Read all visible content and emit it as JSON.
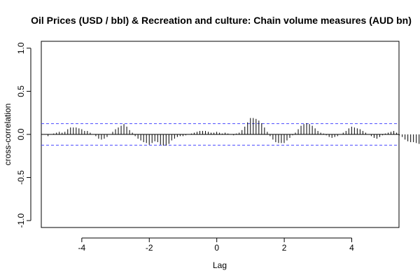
{
  "chart_data": {
    "type": "bar",
    "title": "Oil Prices (USD / bbl) & Recreation and culture: Chain volume measures (AUD bn)",
    "xlabel": "Lag",
    "ylabel": "cross-correlation",
    "xlim": [
      -5.2,
      5.4
    ],
    "ylim": [
      -1.08,
      1.08
    ],
    "x_ticks": [
      -4,
      -2,
      0,
      2,
      4
    ],
    "x_tick_labels": [
      "-4",
      "-2",
      "0",
      "2",
      "4"
    ],
    "y_ticks": [
      -1.0,
      -0.5,
      0.0,
      0.5,
      1.0
    ],
    "y_tick_labels": [
      "-1.0",
      "-0.5",
      "0.0",
      "0.5",
      "1.0"
    ],
    "confidence_bound": 0.125,
    "confidence_color": "#4a4aff",
    "grid": false,
    "legend": "none",
    "lag_start": -5.0,
    "lag_step": 0.0833,
    "values": [
      -0.02,
      0.0,
      0.01,
      0.02,
      0.03,
      0.02,
      0.03,
      0.06,
      0.08,
      0.08,
      0.08,
      0.07,
      0.06,
      0.04,
      0.04,
      0.02,
      0.0,
      -0.02,
      -0.05,
      -0.06,
      -0.05,
      -0.03,
      0.0,
      0.03,
      0.06,
      0.08,
      0.1,
      0.12,
      0.09,
      0.05,
      0.02,
      -0.02,
      -0.05,
      -0.07,
      -0.09,
      -0.1,
      -0.12,
      -0.1,
      -0.08,
      -0.09,
      -0.12,
      -0.13,
      -0.13,
      -0.11,
      -0.07,
      -0.05,
      -0.03,
      -0.02,
      -0.02,
      -0.01,
      0.0,
      0.01,
      0.02,
      0.03,
      0.04,
      0.04,
      0.04,
      0.03,
      0.02,
      0.02,
      0.03,
      0.02,
      0.01,
      0.02,
      0.01,
      0.0,
      -0.01,
      0.01,
      0.02,
      0.05,
      0.09,
      0.14,
      0.19,
      0.19,
      0.18,
      0.16,
      0.13,
      0.08,
      0.03,
      -0.02,
      -0.06,
      -0.09,
      -0.1,
      -0.1,
      -0.1,
      -0.07,
      -0.04,
      -0.01,
      0.02,
      0.06,
      0.1,
      0.12,
      0.13,
      0.12,
      0.1,
      0.07,
      0.04,
      0.02,
      0.01,
      -0.01,
      -0.03,
      -0.04,
      -0.03,
      -0.02,
      0.0,
      0.02,
      0.04,
      0.07,
      0.09,
      0.08,
      0.07,
      0.06,
      0.04,
      0.02,
      0.0,
      -0.02,
      -0.04,
      -0.05,
      -0.03,
      -0.01,
      0.01,
      0.02,
      0.03,
      0.04,
      0.02,
      -0.01,
      -0.03,
      -0.06,
      -0.08,
      -0.09,
      -0.09,
      -0.1,
      -0.11,
      -0.09,
      -0.08
    ]
  }
}
